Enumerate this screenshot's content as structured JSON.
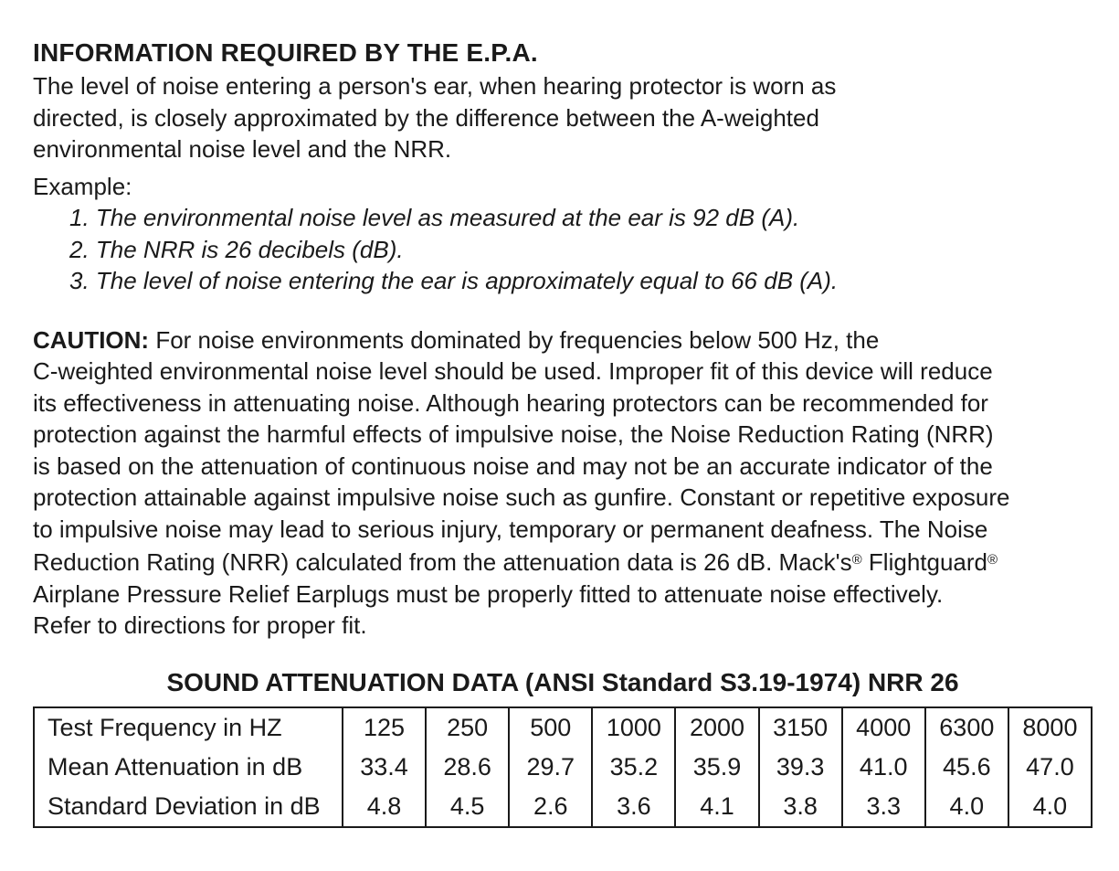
{
  "page": {
    "heading": "INFORMATION REQUIRED BY THE E.P.A.",
    "intro_lines": [
      "The level of noise entering a person's ear, when hearing protector is worn as",
      "directed, is closely approximated by the difference between the A-weighted",
      "environmental noise level and the NRR."
    ],
    "example": {
      "label": "Example:",
      "items": [
        "1. The environmental noise level as measured at the ear is 92 dB (A).",
        "2. The NRR is 26 decibels (dB).",
        "3. The level of noise entering the ear is approximately equal to 66 dB (A)."
      ]
    },
    "caution": {
      "label": "CAUTION:",
      "line1_rest": " For noise environments dominated by frequencies below 500 Hz, the",
      "lines_mid": [
        "C-weighted environmental noise level should be used. Improper fit of this device will reduce",
        "its effectiveness in attenuating noise. Although hearing protectors can be recommended for",
        "protection against the harmful effects of impulsive noise, the Noise Reduction Rating (NRR)",
        "is based on the attenuation of continuous noise and may not be an accurate indicator of the",
        "protection attainable against impulsive noise such as gunfire. Constant or repetitive exposure",
        "to impulsive noise may lead to serious injury, temporary or permanent deafness. The Noise"
      ],
      "brand_line": {
        "prefix": "Reduction Rating (NRR) calculated from the attenuation data is 26 dB. Mack's",
        "reg1": "®",
        "middle": " Flightguard",
        "reg2": "®"
      },
      "closing_lines": [
        "Airplane Pressure Relief Earplugs must be properly fitted to attenuate noise effectively.",
        "Refer to directions for proper fit."
      ]
    },
    "table": {
      "title": "SOUND ATTENUATION DATA (ANSI Standard S3.19-1974) NRR 26",
      "rows": [
        {
          "label": "Test Frequency in HZ",
          "values": [
            "125",
            "250",
            "500",
            "1000",
            "2000",
            "3150",
            "4000",
            "6300",
            "8000"
          ]
        },
        {
          "label": "Mean Attenuation in dB",
          "values": [
            "33.4",
            "28.6",
            "29.7",
            "35.2",
            "35.9",
            "39.3",
            "41.0",
            "45.6",
            "47.0"
          ]
        },
        {
          "label": "Standard Deviation in dB",
          "values": [
            "4.8",
            "4.5",
            "2.6",
            "3.6",
            "4.1",
            "3.8",
            "3.3",
            "4.0",
            "4.0"
          ]
        }
      ]
    },
    "colors": {
      "text": "#1a1a1a",
      "background": "#ffffff"
    }
  }
}
